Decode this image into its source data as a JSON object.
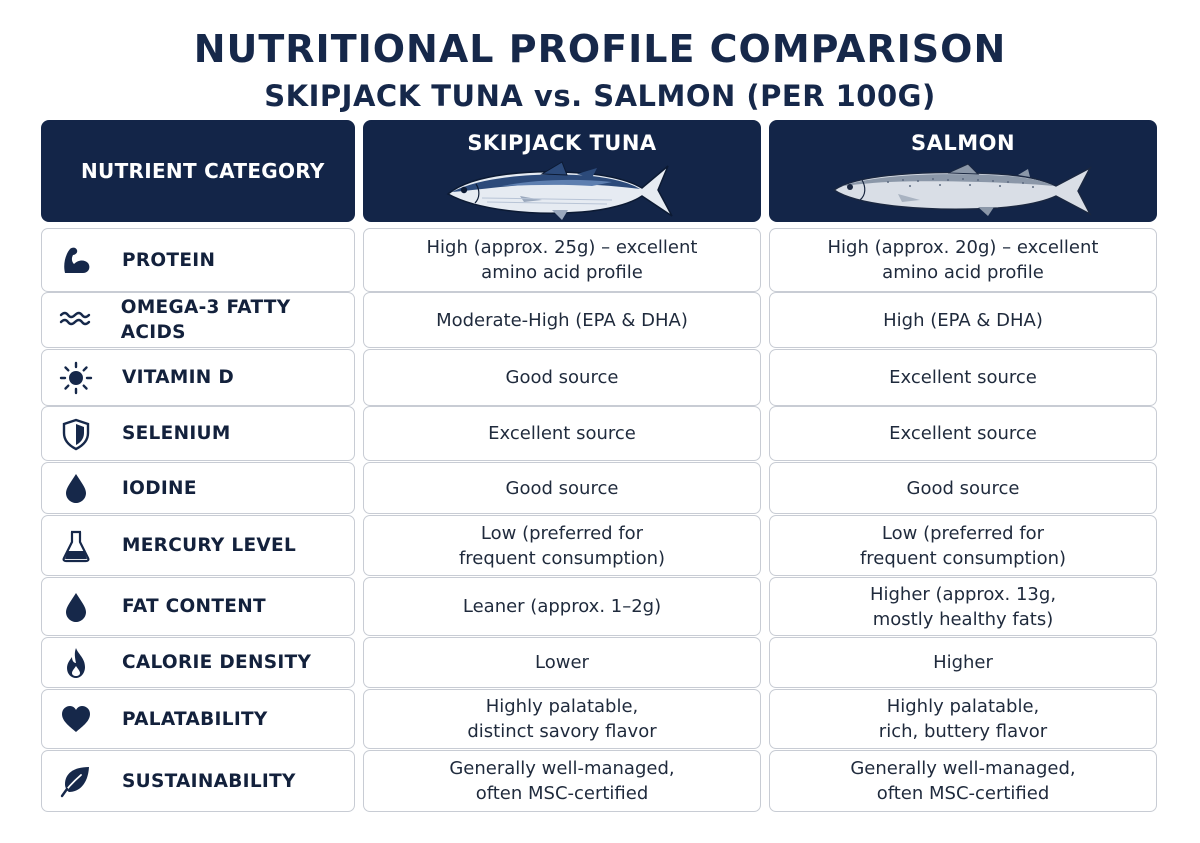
{
  "title": "NUTRITIONAL PROFILE COMPARISON",
  "subtitle": "SKIPJACK TUNA vs. SALMON (PER 100G)",
  "header": {
    "category": "NUTRIENT CATEGORY",
    "col1": "SKIPJACK TUNA",
    "col2": "SALMON"
  },
  "colors": {
    "header_bg": "#132548",
    "border": "#c8ccd4",
    "icon": "#16284a"
  },
  "rows": [
    {
      "category": "PROTEIN",
      "icon": "flexed-bicep-icon",
      "tuna": "High (approx. 25g) – excellent\namino acid profile",
      "salmon": "High (approx. 20g) – excellent\namino acid profile"
    },
    {
      "category": "OMEGA-3 FATTY ACIDS",
      "icon": "waves-icon",
      "tuna": "Moderate-High (EPA & DHA)",
      "salmon": "High (EPA & DHA)"
    },
    {
      "category": "VITAMIN D",
      "icon": "sun-icon",
      "tuna": "Good source",
      "salmon": "Excellent source"
    },
    {
      "category": "SELENIUM",
      "icon": "shield-icon",
      "tuna": "Excellent source",
      "salmon": "Excellent source"
    },
    {
      "category": "IODINE",
      "icon": "droplet-icon",
      "tuna": "Good source",
      "salmon": "Good source"
    },
    {
      "category": "MERCURY LEVEL",
      "icon": "flask-icon",
      "tuna": "Low (preferred for\nfrequent consumption)",
      "salmon": "Low (preferred for\nfrequent consumption)"
    },
    {
      "category": "FAT CONTENT",
      "icon": "droplet-icon",
      "tuna": "Leaner (approx. 1–2g)",
      "salmon": "Higher (approx. 13g,\nmostly healthy fats)"
    },
    {
      "category": "CALORIE DENSITY",
      "icon": "flame-icon",
      "tuna": "Lower",
      "salmon": "Higher"
    },
    {
      "category": "PALATABILITY",
      "icon": "heart-icon",
      "tuna": "Highly palatable,\ndistinct savory flavor",
      "salmon": "Highly palatable,\nrich, buttery flavor"
    },
    {
      "category": "SUSTAINABILITY",
      "icon": "leaf-icon",
      "tuna": "Generally well-managed,\noften MSC-certified",
      "salmon": "Generally well-managed,\noften MSC-certified"
    }
  ]
}
